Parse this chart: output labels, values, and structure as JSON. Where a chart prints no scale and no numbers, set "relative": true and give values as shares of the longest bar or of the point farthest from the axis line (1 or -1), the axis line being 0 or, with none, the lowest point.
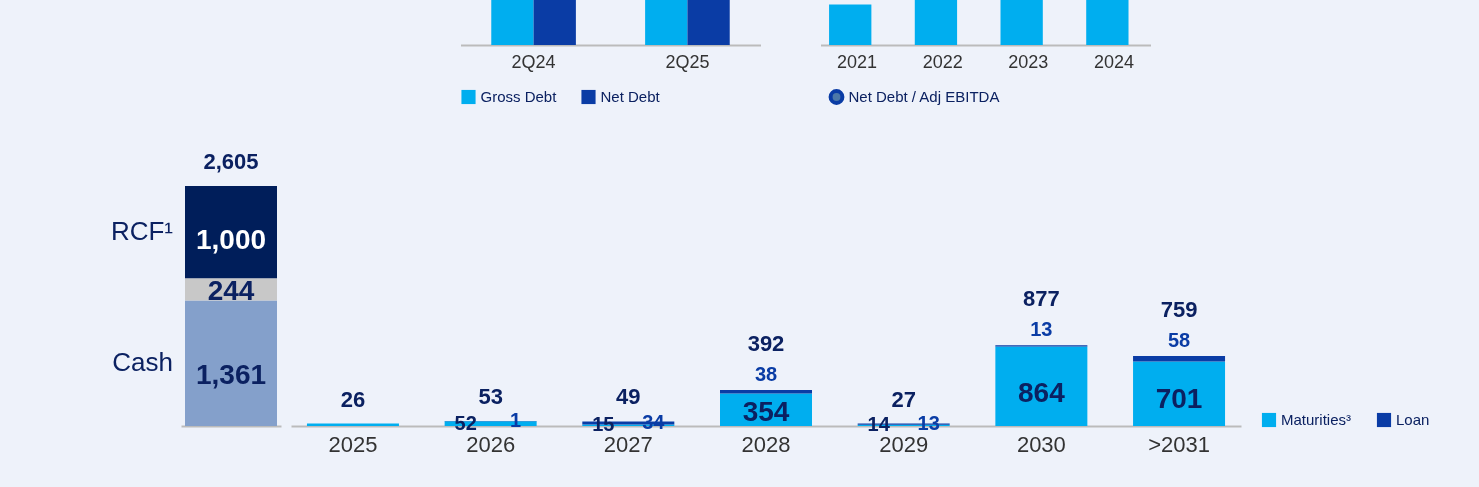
{
  "chart_data": [
    {
      "type": "bar",
      "relative": true,
      "categories": [
        "2Q24",
        "2Q25"
      ],
      "legend": "bottom",
      "series": [
        {
          "name": "Gross Debt",
          "color": "#00aeef",
          "values": [
            1,
            1
          ]
        },
        {
          "name": "Net Debt",
          "color": "#0a3ca5",
          "values": [
            1,
            1
          ]
        }
      ]
    },
    {
      "type": "bar",
      "relative": true,
      "categories": [
        "2021",
        "2022",
        "2023",
        "2024"
      ],
      "legend": "bottom",
      "marker": "circle",
      "series": [
        {
          "color": "#00aeef",
          "values": [
            0.9,
            1,
            1,
            1
          ]
        },
        {
          "type": "line",
          "name": "Net Debt / Adj EBITDA",
          "color": "#0a3ca5",
          "values": [
            null,
            null,
            null,
            null
          ]
        }
      ]
    },
    {
      "type": "bar",
      "stacked": true,
      "tick_labels": "x",
      "categories": [
        null
      ],
      "totals": [
        "2,605"
      ],
      "series": [
        {
          "name": "Cash",
          "color": "#84a0cb",
          "values": [
            1361
          ],
          "value_labels": [
            "1,361"
          ]
        },
        {
          "color": "#c8c8c8",
          "values": [
            244
          ],
          "value_labels": [
            "244"
          ]
        },
        {
          "name": "RCF¹",
          "color": "#001e5a",
          "values": [
            1000
          ],
          "value_labels": [
            "1,000"
          ]
        }
      ]
    },
    {
      "type": "bar",
      "stacked": true,
      "tick_labels": "x",
      "categories": [
        "2025",
        "2026",
        "2027",
        "2028",
        "2029",
        "2030",
        ">2031"
      ],
      "legend": "bottom right",
      "totals": [
        "26",
        "53",
        "49",
        "392",
        "27",
        "877",
        "759"
      ],
      "series": [
        {
          "name": "Maturities³",
          "color": "#00aeef",
          "values": [
            26,
            52,
            15,
            354,
            14,
            864,
            701
          ],
          "value_labels": [
            null,
            "52",
            "15",
            "354",
            "14",
            "864",
            "701"
          ]
        },
        {
          "name": "Loan",
          "color": "#0a3ca5",
          "values": [
            null,
            1,
            34,
            38,
            13,
            13,
            58
          ],
          "value_labels": [
            null,
            "1",
            "34",
            "38",
            "13",
            "13",
            "58"
          ]
        }
      ]
    }
  ]
}
